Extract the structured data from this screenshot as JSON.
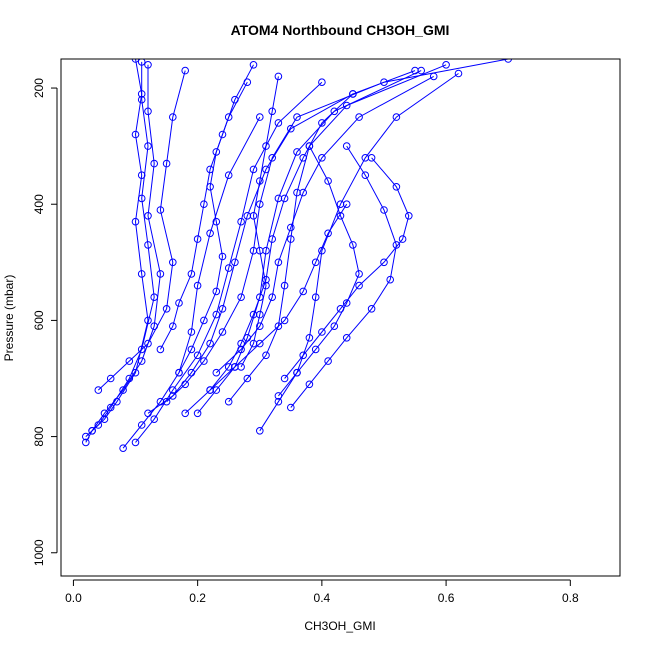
{
  "chart_data": {
    "type": "scatter",
    "title": "ATOM4 Northbound CH3OH_GMI",
    "xlabel": "CH3OH_GMI",
    "ylabel": "Pressure (mbar)",
    "xlim": [
      -0.02,
      0.88
    ],
    "ylim": [
      1040,
      150
    ],
    "y_reversed": true,
    "x_ticks": [
      0.0,
      0.2,
      0.4,
      0.6,
      0.8
    ],
    "x_tick_labels": [
      "0.0",
      "0.2",
      "0.4",
      "0.6",
      "0.8"
    ],
    "y_ticks": [
      200,
      400,
      600,
      800,
      1000
    ],
    "y_tick_labels": [
      "200",
      "400",
      "600",
      "800",
      "1000"
    ],
    "grid": false,
    "legend": "none",
    "line_color": "#0000ff",
    "marker": "open-circle",
    "series": [
      {
        "x": [
          0.02,
          0.03,
          0.05,
          0.07,
          0.1,
          0.12,
          0.11,
          0.1,
          0.11,
          0.1,
          0.11,
          0.1
        ],
        "y": [
          810,
          790,
          770,
          740,
          690,
          600,
          520,
          430,
          350,
          280,
          210,
          150
        ]
      },
      {
        "x": [
          0.02,
          0.04,
          0.06,
          0.09,
          0.11,
          0.13,
          0.12,
          0.11,
          0.12,
          0.11,
          0.11
        ],
        "y": [
          800,
          780,
          750,
          700,
          650,
          560,
          470,
          390,
          300,
          220,
          155
        ]
      },
      {
        "x": [
          0.03,
          0.05,
          0.08,
          0.11,
          0.13,
          0.14,
          0.12,
          0.13,
          0.12,
          0.12
        ],
        "y": [
          790,
          760,
          720,
          670,
          610,
          520,
          420,
          330,
          240,
          160
        ]
      },
      {
        "x": [
          0.04,
          0.06,
          0.09,
          0.12,
          0.15,
          0.16,
          0.14,
          0.15,
          0.16,
          0.18
        ],
        "y": [
          720,
          700,
          670,
          640,
          580,
          500,
          410,
          330,
          250,
          170
        ]
      },
      {
        "x": [
          0.08,
          0.11,
          0.14,
          0.17,
          0.19,
          0.2,
          0.22,
          0.25,
          0.3
        ],
        "y": [
          820,
          780,
          740,
          690,
          620,
          540,
          450,
          350,
          250
        ]
      },
      {
        "x": [
          0.1,
          0.13,
          0.16,
          0.2,
          0.23,
          0.25,
          0.27,
          0.29,
          0.33,
          0.4
        ],
        "y": [
          810,
          770,
          720,
          660,
          590,
          510,
          430,
          340,
          260,
          190
        ]
      },
      {
        "x": [
          0.12,
          0.16,
          0.19,
          0.22,
          0.24,
          0.26,
          0.28,
          0.31,
          0.35,
          0.45,
          0.55
        ],
        "y": [
          760,
          730,
          690,
          640,
          580,
          500,
          420,
          340,
          270,
          210,
          170
        ]
      },
      {
        "x": [
          0.15,
          0.18,
          0.21,
          0.24,
          0.27,
          0.29,
          0.3,
          0.32,
          0.36,
          0.5,
          0.7
        ],
        "y": [
          740,
          710,
          670,
          620,
          560,
          480,
          400,
          320,
          250,
          190,
          150
        ]
      },
      {
        "x": [
          0.2,
          0.23,
          0.26,
          0.28,
          0.3,
          0.31,
          0.33,
          0.36,
          0.42,
          0.56
        ],
        "y": [
          760,
          720,
          680,
          630,
          560,
          480,
          390,
          310,
          240,
          170
        ]
      },
      {
        "x": [
          0.25,
          0.28,
          0.31,
          0.33,
          0.34,
          0.35,
          0.36,
          0.38,
          0.44,
          0.6
        ],
        "y": [
          740,
          700,
          660,
          610,
          540,
          460,
          380,
          300,
          230,
          160
        ]
      },
      {
        "x": [
          0.3,
          0.33,
          0.36,
          0.38,
          0.39,
          0.4,
          0.43,
          0.47,
          0.52,
          0.62
        ],
        "y": [
          790,
          740,
          690,
          630,
          560,
          480,
          400,
          320,
          250,
          175
        ]
      },
      {
        "x": [
          0.34,
          0.37,
          0.4,
          0.43,
          0.46,
          0.5,
          0.53,
          0.54,
          0.52,
          0.48
        ],
        "y": [
          700,
          660,
          620,
          580,
          540,
          500,
          460,
          420,
          370,
          320
        ]
      },
      {
        "x": [
          0.35,
          0.38,
          0.41,
          0.44,
          0.48,
          0.51,
          0.52,
          0.5,
          0.47,
          0.44
        ],
        "y": [
          750,
          710,
          670,
          630,
          580,
          530,
          470,
          410,
          350,
          300
        ]
      },
      {
        "x": [
          0.22,
          0.25,
          0.27,
          0.29,
          0.31,
          0.32,
          0.34,
          0.37,
          0.4,
          0.45
        ],
        "y": [
          720,
          680,
          640,
          590,
          530,
          460,
          390,
          320,
          260,
          210
        ]
      },
      {
        "x": [
          0.17,
          0.19,
          0.21,
          0.23,
          0.24,
          0.23,
          0.22,
          0.23,
          0.25,
          0.28
        ],
        "y": [
          690,
          650,
          600,
          550,
          490,
          430,
          370,
          310,
          250,
          190
        ]
      },
      {
        "x": [
          0.27,
          0.29,
          0.3,
          0.31,
          0.3,
          0.29,
          0.3,
          0.31,
          0.32,
          0.33
        ],
        "y": [
          680,
          640,
          590,
          540,
          480,
          420,
          360,
          300,
          240,
          180
        ]
      },
      {
        "x": [
          0.14,
          0.16,
          0.17,
          0.19,
          0.2,
          0.21,
          0.22,
          0.24,
          0.26,
          0.29
        ],
        "y": [
          650,
          610,
          570,
          520,
          460,
          400,
          340,
          280,
          220,
          160
        ]
      },
      {
        "x": [
          0.33,
          0.36,
          0.39,
          0.42,
          0.44,
          0.46,
          0.45,
          0.43,
          0.41,
          0.38
        ],
        "y": [
          730,
          690,
          650,
          610,
          570,
          520,
          470,
          420,
          360,
          300
        ]
      },
      {
        "x": [
          0.18,
          0.22,
          0.26,
          0.3,
          0.34,
          0.37,
          0.39,
          0.41,
          0.44
        ],
        "y": [
          760,
          720,
          680,
          640,
          600,
          550,
          500,
          450,
          400
        ]
      },
      {
        "x": [
          0.23,
          0.27,
          0.3,
          0.32,
          0.33,
          0.35,
          0.37,
          0.4,
          0.46,
          0.58
        ],
        "y": [
          690,
          650,
          610,
          560,
          500,
          440,
          380,
          320,
          250,
          180
        ]
      }
    ]
  }
}
